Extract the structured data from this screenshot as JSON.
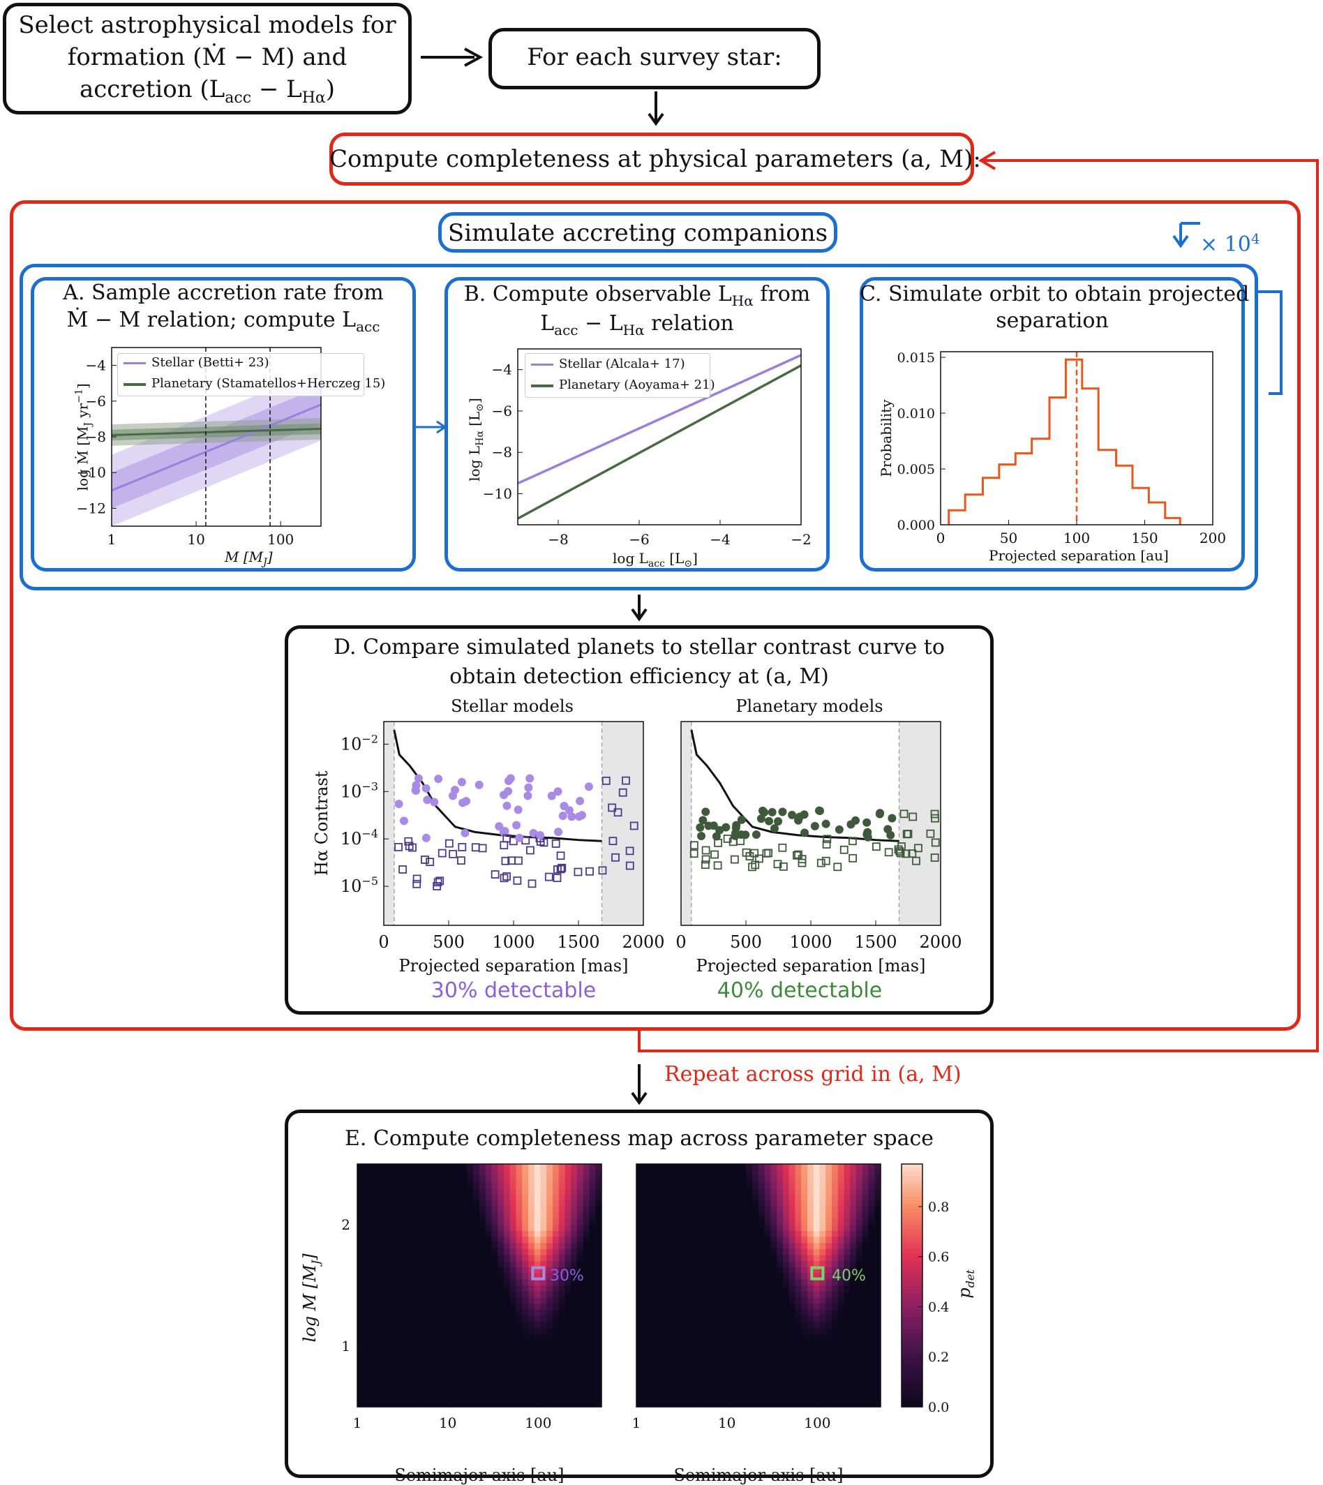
{
  "steps": {
    "select_models": {
      "line1": "Select astrophysical models for",
      "line2": "formation (Ṁ − M) and",
      "line3": "accretion (L",
      "line3_sub": "acc",
      "line3_mid": " − L",
      "line3_sub2": "Hα",
      "line3_end": ")"
    },
    "each_star": "For each survey star:",
    "compute_completeness": "Compute completeness at physical parameters (a, M):",
    "simulate": "Simulate accreting companions",
    "repeat_count": "× 10",
    "repeat_count_exp": "4",
    "repeat_grid": "Repeat across grid in (a, M)"
  },
  "panel_a": {
    "title_line1": "A. Sample accretion rate from",
    "title_line2_pre": "Ṁ − M relation; compute L",
    "title_line2_sub": "acc",
    "ylabel": "log Ṁ  [M",
    "ylabel_sub": "J",
    "ylabel_end": " yr",
    "ylabel_exp": "−1",
    "ylabel_close": "]",
    "xlabel": "M [M",
    "xlabel_sub": "J",
    "xlabel_end": "]",
    "legend": [
      {
        "label": "Stellar (Betti+ 23)",
        "color": "#9b7fdc"
      },
      {
        "label": "Planetary (Stamatellos+Herczeg 15)",
        "color": "#4a6a45"
      }
    ]
  },
  "panel_b": {
    "title_line1_pre": "B. Compute observable L",
    "title_line1_sub": "Hα",
    "title_line1_end": " from",
    "title_line2_pre": "L",
    "title_line2_sub": "acc",
    "title_line2_mid": " − L",
    "title_line2_sub2": "Hα",
    "title_line2_end": " relation",
    "ylabel": "log L",
    "ylabel_sub": "Hα",
    "ylabel_end": " [L",
    "ylabel_sub2": "⊙",
    "ylabel_close": "]",
    "xlabel": "log L",
    "xlabel_sub": "acc",
    "xlabel_end": " [L",
    "xlabel_sub2": "⊙",
    "xlabel_close": "]",
    "legend": [
      {
        "label": "Stellar (Alcala+ 17)",
        "color": "#9b7fdc"
      },
      {
        "label": "Planetary (Aoyama+ 21)",
        "color": "#4a6a45"
      }
    ]
  },
  "panel_c": {
    "title_line1": "C. Simulate orbit to obtain projected",
    "title_line2": "separation",
    "ylabel": "Probability",
    "xlabel": "Projected separation [au]"
  },
  "panel_d": {
    "title_line1": "D. Compare simulated planets to stellar contrast curve to",
    "title_line2": "obtain detection efficiency at (a, M)",
    "left_title": "Stellar models",
    "right_title": "Planetary models",
    "ylabel": "Hα Contrast",
    "xlabel": "Projected separation [mas]",
    "left_result": "30% detectable",
    "right_result": "40% detectable",
    "left_color": "#8a5fe0",
    "right_color": "#3f8a3a"
  },
  "panel_e": {
    "title": "E. Compute completeness map across parameter space",
    "ylabel": "log M [M",
    "ylabel_sub": "J",
    "ylabel_end": "]",
    "xlabel": "Semimajor axis [au]",
    "left_marker": "30%",
    "right_marker": "40%",
    "colorbar_label": "p",
    "colorbar_label_sub": "det"
  },
  "chart_data": [
    {
      "type": "line",
      "title": "A. Sample accretion rate from Ṁ − M relation; compute Lacc",
      "xlabel": "M [MJ]",
      "ylabel": "log Ṁ [MJ yr−1]",
      "xscale": "log",
      "xlim": [
        1,
        300
      ],
      "ylim": [
        -13,
        -3
      ],
      "xticks": [
        1,
        10,
        100
      ],
      "yticks": [
        -4,
        -6,
        -8,
        -10,
        -12
      ],
      "series": [
        {
          "name": "Stellar (Betti+ 23)",
          "x": [
            1,
            300
          ],
          "y": [
            -11.0,
            -6.2
          ],
          "band_1sigma": 1.0,
          "band_2sigma": 2.0
        },
        {
          "name": "Planetary (Stamatellos+Herczeg 15)",
          "x": [
            1,
            300
          ],
          "y": [
            -7.9,
            -7.55
          ],
          "band_1sigma": 0.3,
          "band_2sigma": 0.6
        }
      ],
      "vlines": [
        13,
        75
      ]
    },
    {
      "type": "line",
      "title": "B. Compute observable LHα from Lacc − LHα relation",
      "xlabel": "log Lacc [L⊙]",
      "ylabel": "log LHα [L⊙]",
      "xlim": [
        -9,
        -2
      ],
      "ylim": [
        -11.5,
        -3
      ],
      "xticks": [
        -8,
        -6,
        -4,
        -2
      ],
      "yticks": [
        -4,
        -6,
        -8,
        -10
      ],
      "series": [
        {
          "name": "Stellar (Alcala+ 17)",
          "x": [
            -9,
            -2
          ],
          "y": [
            -9.5,
            -3.3
          ]
        },
        {
          "name": "Planetary (Aoyama+ 21)",
          "x": [
            -9,
            -2
          ],
          "y": [
            -11.2,
            -3.8
          ]
        }
      ]
    },
    {
      "type": "bar",
      "title": "C. Simulate orbit to obtain projected separation",
      "xlabel": "Projected separation [au]",
      "ylabel": "Probability",
      "xlim": [
        0,
        200
      ],
      "ylim": [
        0,
        0.0155
      ],
      "xticks": [
        0,
        50,
        100,
        150,
        200
      ],
      "yticks": [
        0.0,
        0.005,
        0.01,
        0.015
      ],
      "bin_edges": [
        6,
        18,
        31,
        43,
        55,
        67,
        80,
        92,
        104,
        116,
        129,
        141,
        153,
        165,
        176
      ],
      "values": [
        0.0013,
        0.0027,
        0.0042,
        0.0054,
        0.0064,
        0.0077,
        0.0114,
        0.0148,
        0.0122,
        0.0067,
        0.0053,
        0.0033,
        0.002,
        0.0006
      ],
      "vline": 100
    },
    {
      "type": "scatter",
      "title": "Stellar models",
      "xlabel": "Projected separation [mas]",
      "ylabel": "Hα Contrast",
      "yscale": "log",
      "xlim": [
        0,
        2000
      ],
      "ylim": [
        1.5e-06,
        0.03
      ],
      "xticks": [
        0,
        500,
        1000,
        1500,
        2000
      ],
      "yticks": [
        1e-05,
        0.0001,
        0.001,
        0.01
      ],
      "contrast_curve": {
        "x": [
          80,
          120,
          200,
          300,
          400,
          550,
          700,
          900,
          1100,
          1300,
          1500,
          1680
        ],
        "y": [
          0.02,
          0.006,
          0.0035,
          0.0015,
          0.0005,
          0.00018,
          0.00014,
          0.00012,
          0.00011,
          0.000105,
          9.5e-05,
          9e-05
        ]
      },
      "detected_count": 30,
      "total_count": 100
    },
    {
      "type": "scatter",
      "title": "Planetary models",
      "xlabel": "Projected separation [mas]",
      "ylabel": "Hα Contrast",
      "yscale": "log",
      "xlim": [
        0,
        2000
      ],
      "ylim": [
        1.5e-06,
        0.03
      ],
      "xticks": [
        0,
        500,
        1000,
        1500,
        2000
      ],
      "contrast_curve": {
        "x": [
          80,
          120,
          200,
          300,
          400,
          550,
          700,
          900,
          1100,
          1300,
          1500,
          1680
        ],
        "y": [
          0.02,
          0.006,
          0.0035,
          0.0015,
          0.0005,
          0.00018,
          0.00014,
          0.00012,
          0.00011,
          0.000105,
          9.5e-05,
          9e-05
        ]
      },
      "detected_count": 40,
      "total_count": 100
    },
    {
      "type": "heatmap",
      "title": "E. Compute completeness map across parameter space",
      "xlabel": "Semimajor axis [au]",
      "ylabel": "log M [MJ]",
      "xscale": "log",
      "xlim": [
        1,
        500
      ],
      "ylim": [
        0.5,
        2.5
      ],
      "xticks": [
        1,
        10,
        100
      ],
      "yticks": [
        1,
        2
      ],
      "colorbar": {
        "label": "pdet",
        "ticks": [
          0.0,
          0.2,
          0.4,
          0.6,
          0.8
        ],
        "range": [
          0,
          0.97
        ]
      },
      "markers": [
        {
          "panel": "left",
          "a": 100,
          "logM": 1.6,
          "value": "30%"
        },
        {
          "panel": "right",
          "a": 100,
          "logM": 1.6,
          "value": "40%"
        }
      ]
    }
  ]
}
